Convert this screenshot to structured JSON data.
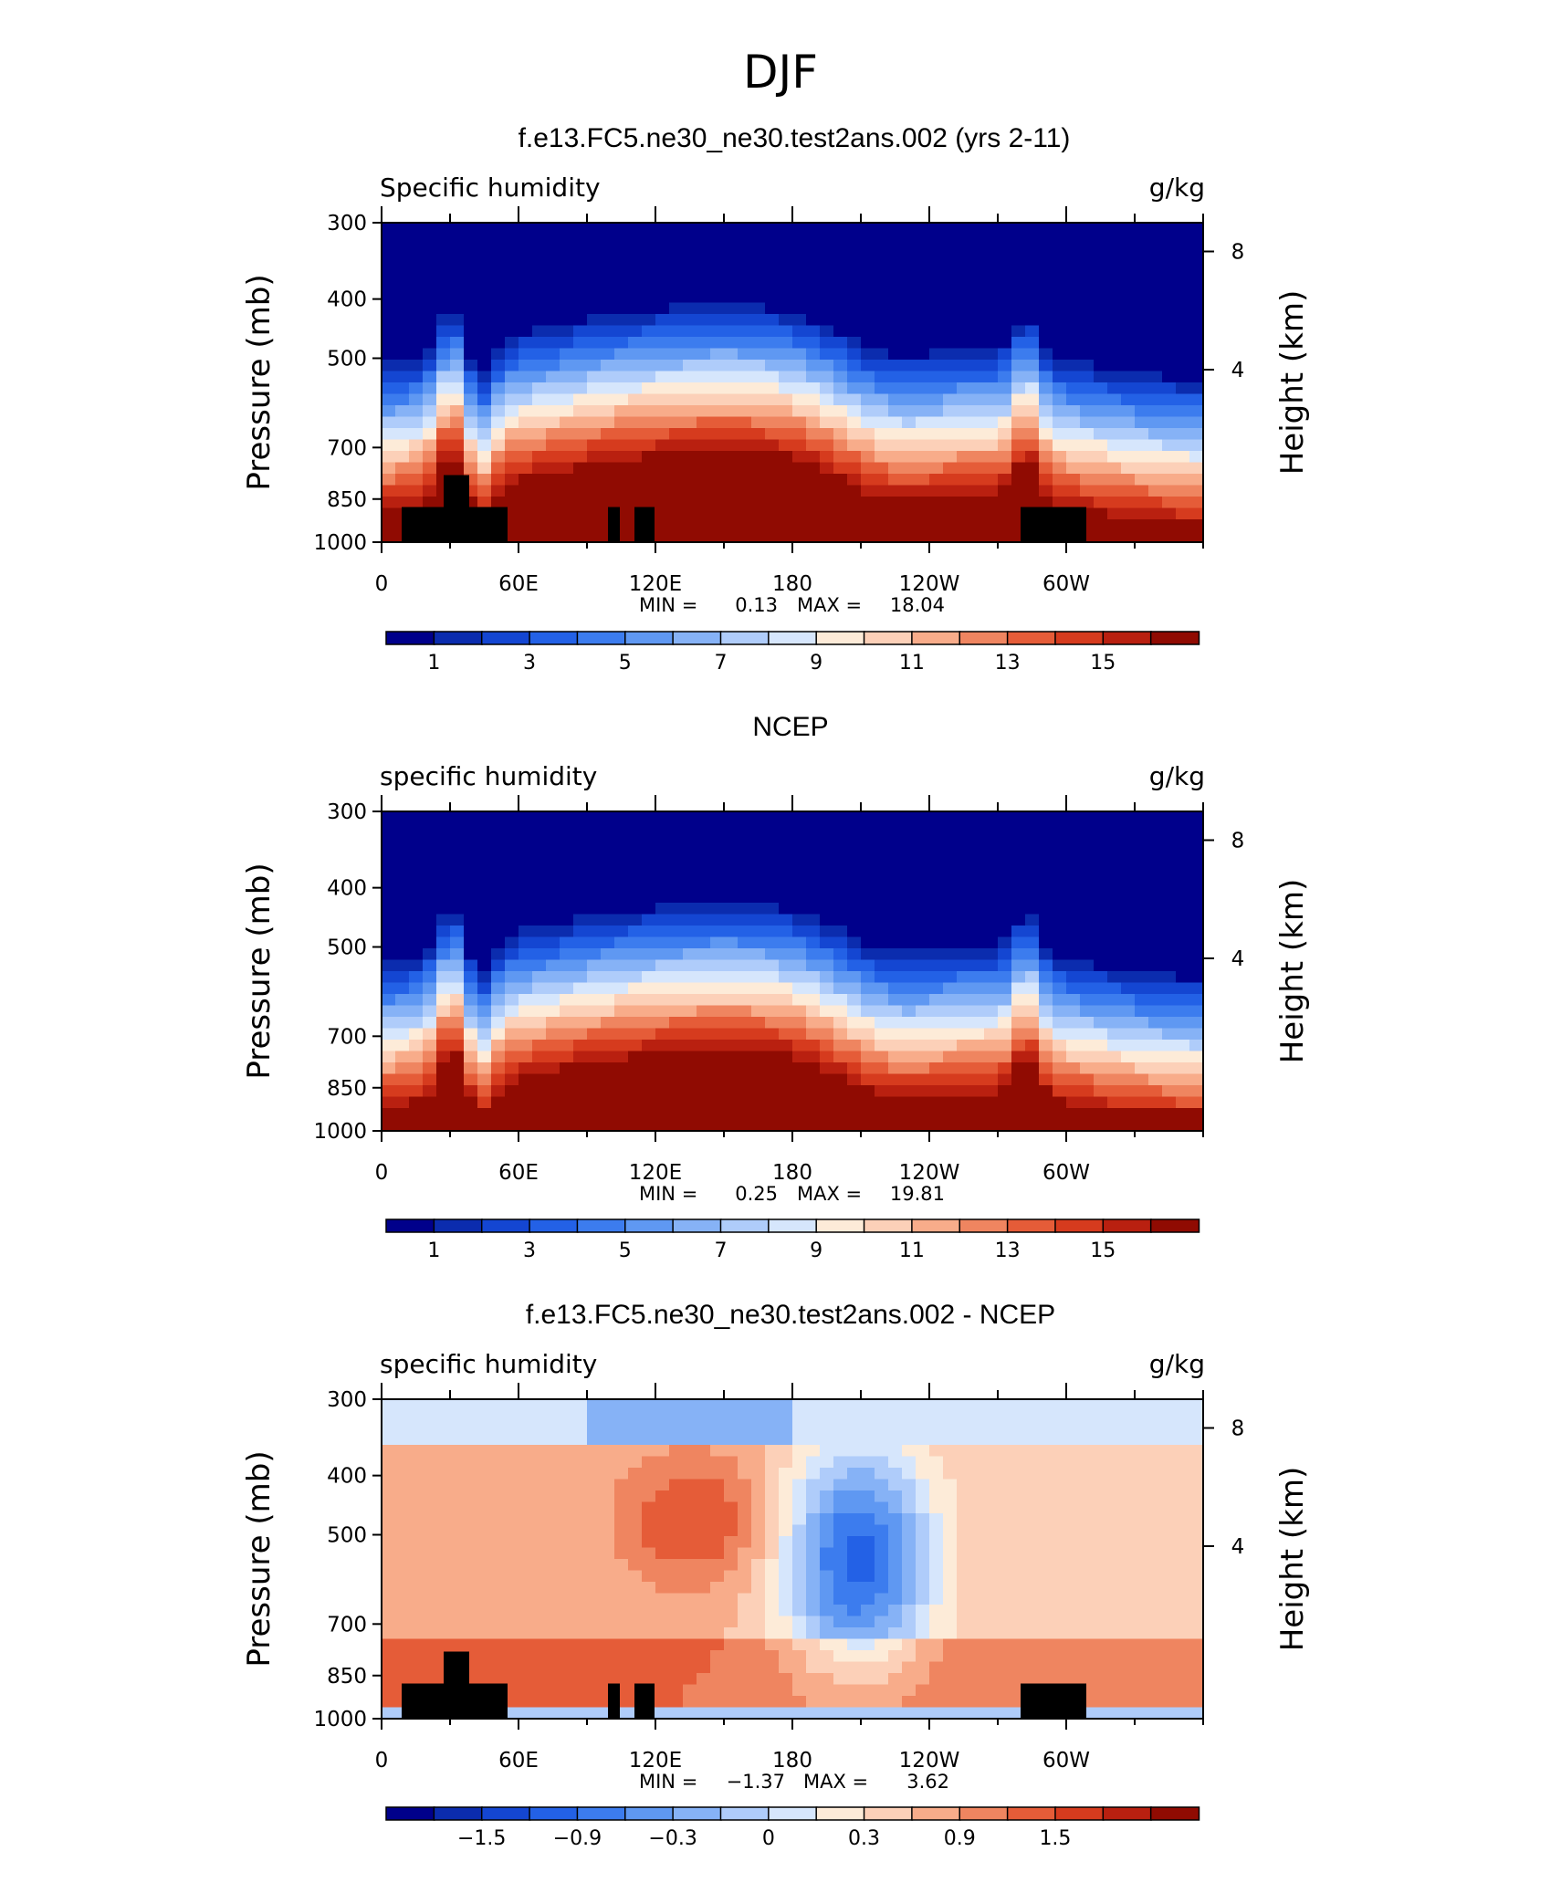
{
  "figure": {
    "title": "DJF"
  },
  "colormap": [
    "#00008b",
    "#0b2cae",
    "#1446d2",
    "#2361e6",
    "#3c7cee",
    "#5f98f2",
    "#86b2f6",
    "#afccfa",
    "#d6e6fc",
    "#fdebd8",
    "#fcd0b8",
    "#f8ac8a",
    "#ef8560",
    "#e55c38",
    "#d63b1e",
    "#b92010",
    "#900b02"
  ],
  "axes": {
    "ylabel_left": "Pressure (mb)",
    "ylabel_right": "Height (km)",
    "pressure_ticks": [
      "300",
      "400",
      "500",
      "700",
      "850",
      "1000"
    ],
    "height_ticks": [
      "8",
      "4"
    ],
    "x_ticks": [
      "0",
      "60E",
      "120E",
      "180",
      "120W",
      "60W"
    ]
  },
  "panels": [
    {
      "title": "f.e13.FC5.ne30_ne30.test2ans.002 (yrs 2-11)",
      "left_label": "Specific humidity",
      "right_label": "g/kg",
      "min_label": "MIN =",
      "min_value": "0.13",
      "max_label": "MAX =",
      "max_value": "18.04",
      "colorbar_labels": [
        "1",
        "3",
        "5",
        "7",
        "9",
        "11",
        "13",
        "15"
      ]
    },
    {
      "title": "NCEP",
      "left_label": "specific humidity",
      "right_label": "g/kg",
      "min_label": "MIN =",
      "min_value": "0.25",
      "max_label": "MAX =",
      "max_value": "19.81",
      "colorbar_labels": [
        "1",
        "3",
        "5",
        "7",
        "9",
        "11",
        "13",
        "15"
      ]
    },
    {
      "title": "f.e13.FC5.ne30_ne30.test2ans.002 - NCEP",
      "left_label": "specific humidity",
      "right_label": "g/kg",
      "min_label": "MIN =",
      "min_value": "−1.37",
      "max_label": "MAX =",
      "max_value": "3.62",
      "colorbar_labels": [
        "−1.5",
        "−0.9",
        "−0.3",
        "0",
        "0.3",
        "0.9",
        "1.5"
      ]
    }
  ],
  "chart_data": [
    {
      "type": "heatmap",
      "title": "f.e13.FC5.ne30_ne30.test2ans.002 (yrs 2-11)",
      "variable": "Specific humidity",
      "units": "g/kg",
      "xlabel": "",
      "ylabel": "Pressure (mb)",
      "x_ticks": [
        "0",
        "60E",
        "120E",
        "180",
        "120W",
        "60W"
      ],
      "y_ticks": [
        300,
        400,
        500,
        700,
        850,
        1000
      ],
      "levels": [
        1,
        2,
        3,
        4,
        5,
        6,
        7,
        8,
        9,
        10,
        11,
        12,
        13,
        14,
        15,
        16
      ],
      "min": 0.13,
      "max": 18.04
    },
    {
      "type": "heatmap",
      "title": "NCEP",
      "variable": "specific humidity",
      "units": "g/kg",
      "xlabel": "",
      "ylabel": "Pressure (mb)",
      "x_ticks": [
        "0",
        "60E",
        "120E",
        "180",
        "120W",
        "60W"
      ],
      "y_ticks": [
        300,
        400,
        500,
        700,
        850,
        1000
      ],
      "levels": [
        1,
        2,
        3,
        4,
        5,
        6,
        7,
        8,
        9,
        10,
        11,
        12,
        13,
        14,
        15,
        16
      ],
      "min": 0.25,
      "max": 19.81
    },
    {
      "type": "heatmap",
      "title": "f.e13.FC5.ne30_ne30.test2ans.002 - NCEP",
      "variable": "specific humidity",
      "units": "g/kg",
      "xlabel": "",
      "ylabel": "Pressure (mb)",
      "x_ticks": [
        "0",
        "60E",
        "120E",
        "180",
        "120W",
        "60W"
      ],
      "y_ticks": [
        300,
        400,
        500,
        700,
        850,
        1000
      ],
      "levels": [
        -1.8,
        -1.5,
        -1.2,
        -0.9,
        -0.6,
        -0.3,
        -0.1,
        0,
        0.1,
        0.3,
        0.6,
        0.9,
        1.2,
        1.5,
        1.8
      ],
      "min": -1.37,
      "max": 3.62
    }
  ]
}
